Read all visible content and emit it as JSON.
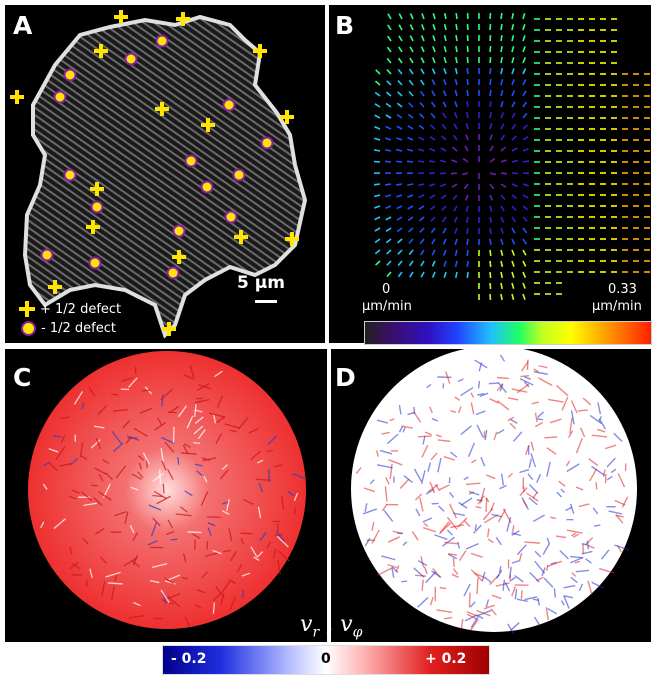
{
  "panels": {
    "a": {
      "letter": "A",
      "legend_plus": "+ 1/2 defect",
      "legend_minus": "- 1/2 defect",
      "scale": "5 µm",
      "colors": {
        "plus_defect": "#ffe500",
        "minus_defect_fill": "#ffe500",
        "minus_defect_ring": "#8a1fa6"
      }
    },
    "b": {
      "letter": "B",
      "cbar_min_value": "0",
      "cbar_min_unit": "µm/min",
      "cbar_max_value": "0.33",
      "cbar_max_unit": "µm/min"
    },
    "c": {
      "letter": "C",
      "colors": {
        "fill": "#ee3030",
        "highlight": "#ffe0e0"
      }
    },
    "d": {
      "letter": "D",
      "colors": {
        "fill": "#ffffff",
        "blue": "#2030d0",
        "red": "#e02020"
      }
    }
  },
  "colorbar": {
    "title_main": "v",
    "title_sub_r": "r",
    "title_sep": " , v",
    "title_sub_phi": "φ",
    "min_label": "- 0.2",
    "mid_label": "0",
    "max_label": "+ 0.2"
  }
}
